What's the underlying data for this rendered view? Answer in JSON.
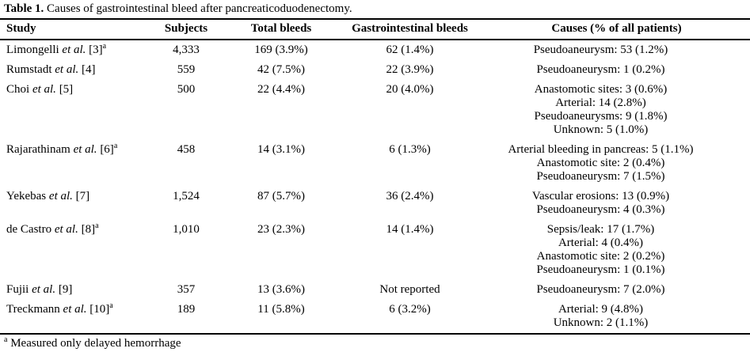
{
  "table": {
    "title_label": "Table 1.",
    "title_text": " Causes of gastrointestinal bleed after pancreaticoduodenectomy.",
    "headers": [
      "Study",
      "Subjects",
      "Total bleeds",
      "Gastrointestinal bleeds",
      "Causes (% of all patients)"
    ],
    "rows": [
      {
        "study_pre": "Limongelli ",
        "study_etal": "et al.",
        "study_post": " [3]",
        "study_sup": "a",
        "subjects": "4,333",
        "total_bleeds": "169 (3.9%)",
        "gi_bleeds": "62 (1.4%)",
        "causes": [
          "Pseudoaneurysm: 53 (1.2%)"
        ]
      },
      {
        "study_pre": "Rumstadt ",
        "study_etal": "et al.",
        "study_post": " [4]",
        "study_sup": "",
        "subjects": "559",
        "total_bleeds": "42 (7.5%)",
        "gi_bleeds": "22 (3.9%)",
        "causes": [
          "Pseudoaneurysm: 1 (0.2%)"
        ]
      },
      {
        "study_pre": "Choi ",
        "study_etal": "et al.",
        "study_post": " [5]",
        "study_sup": "",
        "subjects": "500",
        "total_bleeds": "22 (4.4%)",
        "gi_bleeds": "20 (4.0%)",
        "causes": [
          "Anastomotic sites: 3 (0.6%)",
          "Arterial: 14 (2.8%)",
          "Pseudoaneurysms: 9 (1.8%)",
          "Unknown: 5 (1.0%)"
        ]
      },
      {
        "study_pre": "Rajarathinam ",
        "study_etal": "et al.",
        "study_post": " [6]",
        "study_sup": "a",
        "subjects": "458",
        "total_bleeds": "14 (3.1%)",
        "gi_bleeds": "6 (1.3%)",
        "causes": [
          "Arterial bleeding in pancreas: 5 (1.1%)",
          "Anastomotic site: 2 (0.4%)",
          "Pseudoaneurysm: 7 (1.5%)"
        ]
      },
      {
        "study_pre": "Yekebas ",
        "study_etal": "et al.",
        "study_post": " [7]",
        "study_sup": "",
        "subjects": "1,524",
        "total_bleeds": "87 (5.7%)",
        "gi_bleeds": "36 (2.4%)",
        "causes": [
          "Vascular erosions: 13 (0.9%)",
          "Pseudoaneurysm: 4 (0.3%)"
        ]
      },
      {
        "study_pre": "de Castro ",
        "study_etal": "et al.",
        "study_post": " [8]",
        "study_sup": "a",
        "subjects": "1,010",
        "total_bleeds": "23 (2.3%)",
        "gi_bleeds": "14 (1.4%)",
        "causes": [
          "Sepsis/leak: 17 (1.7%)",
          "Arterial: 4 (0.4%)",
          "Anastomotic site: 2 (0.2%)",
          "Pseudoaneurysm: 1 (0.1%)"
        ]
      },
      {
        "study_pre": "Fujii ",
        "study_etal": "et al.",
        "study_post": " [9]",
        "study_sup": "",
        "subjects": "357",
        "total_bleeds": "13 (3.6%)",
        "gi_bleeds": "Not reported",
        "causes": [
          "Pseudoaneurysm: 7 (2.0%)"
        ]
      },
      {
        "study_pre": "Treckmann ",
        "study_etal": "et al.",
        "study_post": " [10]",
        "study_sup": "a",
        "subjects": "189",
        "total_bleeds": "11 (5.8%)",
        "gi_bleeds": "6 (3.2%)",
        "causes": [
          "Arterial: 9 (4.8%)",
          "Unknown: 2 (1.1%)"
        ]
      }
    ],
    "footnote_sup": "a",
    "footnote_text": "Measured only delayed hemorrhage"
  },
  "colors": {
    "text": "#000000",
    "background": "#ffffff",
    "rule": "#000000"
  }
}
